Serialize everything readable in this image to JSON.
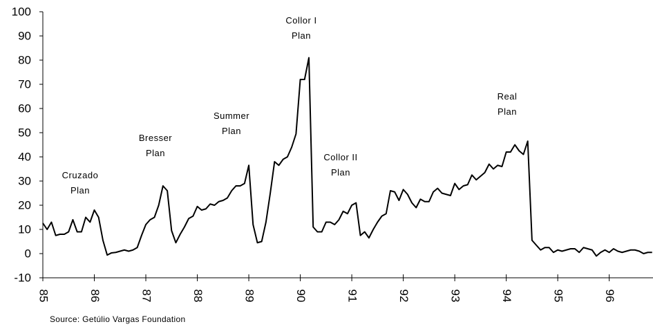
{
  "chart_data": {
    "type": "line",
    "annotations": [
      [
        "Cruzado",
        "Plan"
      ],
      [
        "Bresser",
        "Plan"
      ],
      [
        "Summer",
        "Plan"
      ],
      [
        "Collor I",
        "Plan"
      ],
      [
        "Collor II",
        "Plan"
      ],
      [
        "Real",
        "Plan"
      ]
    ],
    "source": "Source: Getúlio Vargas Foundation",
    "xlim": [
      85,
      96.85
    ],
    "xticks": [
      85,
      86,
      87,
      88,
      89,
      90,
      91,
      92,
      93,
      94,
      95,
      96
    ],
    "ylim": [
      -10,
      100
    ],
    "yticks": [
      -10,
      0,
      10,
      20,
      30,
      40,
      50,
      60,
      70,
      80,
      90,
      100
    ],
    "color": "#000000",
    "x": [
      85,
      85.083,
      85.167,
      85.25,
      85.333,
      85.417,
      85.5,
      85.583,
      85.667,
      85.75,
      85.833,
      85.917,
      86,
      86.083,
      86.167,
      86.25,
      86.333,
      86.417,
      86.5,
      86.583,
      86.667,
      86.75,
      86.833,
      86.917,
      87,
      87.083,
      87.167,
      87.25,
      87.333,
      87.417,
      87.5,
      87.583,
      87.667,
      87.75,
      87.833,
      87.917,
      88,
      88.083,
      88.167,
      88.25,
      88.333,
      88.417,
      88.5,
      88.583,
      88.667,
      88.75,
      88.833,
      88.917,
      89,
      89.083,
      89.167,
      89.25,
      89.333,
      89.417,
      89.5,
      89.583,
      89.667,
      89.75,
      89.833,
      89.917,
      90,
      90.083,
      90.167,
      90.25,
      90.333,
      90.417,
      90.5,
      90.583,
      90.667,
      90.75,
      90.833,
      90.917,
      91,
      91.083,
      91.167,
      91.25,
      91.333,
      91.417,
      91.5,
      91.583,
      91.667,
      91.75,
      91.833,
      91.917,
      92,
      92.083,
      92.167,
      92.25,
      92.333,
      92.417,
      92.5,
      92.583,
      92.667,
      92.75,
      92.833,
      92.917,
      93,
      93.083,
      93.167,
      93.25,
      93.333,
      93.417,
      93.5,
      93.583,
      93.667,
      93.75,
      93.833,
      93.917,
      94,
      94.083,
      94.167,
      94.25,
      94.333,
      94.417,
      94.5,
      94.583,
      94.667,
      94.75,
      94.833,
      94.917,
      95,
      95.083,
      95.167,
      95.25,
      95.333,
      95.417,
      95.5,
      95.583,
      95.667,
      95.75,
      95.833,
      95.917,
      96,
      96.083,
      96.167,
      96.25,
      96.333,
      96.417,
      96.5,
      96.583,
      96.667,
      96.75,
      96.833
    ],
    "values": [
      12.6,
      10,
      13,
      7.5,
      8,
      8,
      9,
      14,
      9,
      9,
      15,
      13,
      18,
      15,
      5.5,
      -0.6,
      0.3,
      0.5,
      1,
      1.5,
      1,
      1.5,
      2.5,
      7.5,
      12,
      14,
      15,
      20,
      28,
      26,
      9.5,
      4.5,
      8,
      11,
      14.5,
      15.5,
      19.5,
      18,
      18.5,
      20.5,
      20,
      21.5,
      22,
      23,
      26,
      28,
      28,
      29,
      36.5,
      12,
      4.5,
      5,
      13,
      25,
      38,
      36.5,
      39,
      40,
      44,
      49.5,
      72,
      72,
      81,
      11,
      9,
      9,
      13,
      13,
      12,
      14,
      17.5,
      16.5,
      20,
      21,
      7.5,
      9,
      6.5,
      10,
      13,
      15.5,
      16.5,
      26,
      25.5,
      22,
      26.5,
      24.5,
      21,
      19,
      22.5,
      21.5,
      21.5,
      25.5,
      27,
      25,
      24.5,
      24,
      29,
      26.5,
      28,
      28.5,
      32.5,
      30.5,
      32,
      33.5,
      37,
      35,
      36.5,
      36,
      42,
      42,
      45,
      42.5,
      41,
      46.5,
      5.5,
      3.5,
      1.5,
      2.5,
      2.5,
      0.5,
      1.5,
      1,
      1.5,
      2,
      2,
      0.5,
      2.5,
      2,
      1.5,
      -1,
      0.5,
      1.5,
      0.5,
      2,
      1,
      0.5,
      1,
      1.5,
      1.5,
      1,
      0,
      0.5,
      0.5
    ]
  }
}
